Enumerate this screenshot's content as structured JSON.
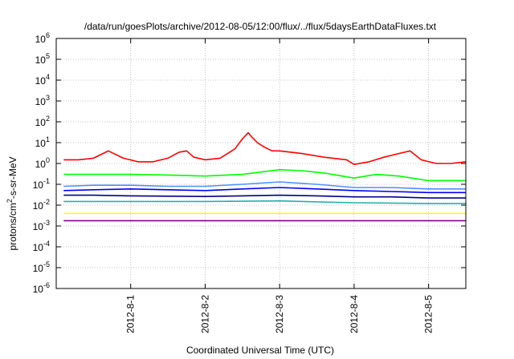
{
  "chart_data": {
    "type": "line",
    "title": "/data/run/goesPlots/archive/2012-08-05/12:00/flux/../flux/5daysEarthDataFluxes.txt",
    "xlabel": "Coordinated Universal Time (UTC)",
    "ylabel_base": "protons/cm",
    "ylabel_sup": "2",
    "ylabel_tail": "-s-sr-MeV",
    "y_scale": "log",
    "ylim": [
      1e-06,
      1000000.0
    ],
    "y_ticks": [
      {
        "exp": -6,
        "base": "10",
        "sup": "-6"
      },
      {
        "exp": -5,
        "base": "10",
        "sup": "-5"
      },
      {
        "exp": -4,
        "base": "10",
        "sup": "-4"
      },
      {
        "exp": -3,
        "base": "10",
        "sup": "-3"
      },
      {
        "exp": -2,
        "base": "10",
        "sup": "-2"
      },
      {
        "exp": -1,
        "base": "10",
        "sup": "-1"
      },
      {
        "exp": 0,
        "base": "10",
        "sup": "0"
      },
      {
        "exp": 1,
        "base": "10",
        "sup": "1"
      },
      {
        "exp": 2,
        "base": "10",
        "sup": "2"
      },
      {
        "exp": 3,
        "base": "10",
        "sup": "3"
      },
      {
        "exp": 4,
        "base": "10",
        "sup": "4"
      },
      {
        "exp": 5,
        "base": "10",
        "sup": "5"
      },
      {
        "exp": 6,
        "base": "10",
        "sup": "6"
      }
    ],
    "x_days": [
      0,
      5.5
    ],
    "x_ticks": [
      {
        "day": 1,
        "label": "2012-8-1"
      },
      {
        "day": 2,
        "label": "2012-8-2"
      },
      {
        "day": 3,
        "label": "2012-8-3"
      },
      {
        "day": 4,
        "label": "2012-8-4"
      },
      {
        "day": 5,
        "label": "2012-8-5"
      }
    ],
    "grid": true,
    "legend": "none",
    "series": [
      {
        "color": "#800080",
        "x": [
          0.1,
          1.0,
          2.0,
          3.0,
          4.0,
          5.0,
          5.5
        ],
        "y": [
          0.0018,
          0.0018,
          0.0018,
          0.0018,
          0.0018,
          0.0018,
          0.0018
        ]
      },
      {
        "color": "#ffff00",
        "x": [
          0.1,
          1.0,
          2.0,
          3.0,
          4.0,
          5.0,
          5.5
        ],
        "y": [
          0.004,
          0.004,
          0.004,
          0.004,
          0.004,
          0.004,
          0.004
        ]
      },
      {
        "color": "#20b2aa",
        "x": [
          0.1,
          1.0,
          2.0,
          3.0,
          4.0,
          5.0,
          5.5
        ],
        "y": [
          0.015,
          0.015,
          0.015,
          0.016,
          0.013,
          0.012,
          0.012
        ]
      },
      {
        "color": "#00008b",
        "x": [
          0.1,
          0.5,
          1.0,
          1.5,
          2.0,
          2.5,
          3.0,
          3.5,
          4.0,
          4.5,
          5.0,
          5.5
        ],
        "y": [
          0.03,
          0.03,
          0.028,
          0.027,
          0.026,
          0.028,
          0.03,
          0.028,
          0.025,
          0.025,
          0.022,
          0.022
        ]
      },
      {
        "color": "#0000ff",
        "x": [
          0.1,
          0.5,
          1.0,
          1.5,
          2.0,
          2.5,
          3.0,
          3.5,
          4.0,
          4.5,
          5.0,
          5.5
        ],
        "y": [
          0.05,
          0.055,
          0.06,
          0.055,
          0.05,
          0.06,
          0.07,
          0.06,
          0.05,
          0.045,
          0.04,
          0.04
        ]
      },
      {
        "color": "#4a90ff",
        "x": [
          0.1,
          0.5,
          1.0,
          1.5,
          2.0,
          2.5,
          3.0,
          3.5,
          4.0,
          4.5,
          5.0,
          5.5
        ],
        "y": [
          0.08,
          0.09,
          0.09,
          0.08,
          0.08,
          0.1,
          0.13,
          0.1,
          0.07,
          0.07,
          0.06,
          0.06
        ]
      },
      {
        "color": "#00ff00",
        "x": [
          0.1,
          0.5,
          1.0,
          1.5,
          2.0,
          2.5,
          3.0,
          3.3,
          3.6,
          4.0,
          4.3,
          4.6,
          5.0,
          5.5
        ],
        "y": [
          0.3,
          0.3,
          0.3,
          0.28,
          0.25,
          0.3,
          0.5,
          0.45,
          0.35,
          0.2,
          0.3,
          0.25,
          0.15,
          0.15
        ]
      },
      {
        "color": "#ff0000",
        "x": [
          0.1,
          0.3,
          0.5,
          0.7,
          0.9,
          1.1,
          1.3,
          1.5,
          1.65,
          1.75,
          1.85,
          2.0,
          2.2,
          2.4,
          2.5,
          2.58,
          2.62,
          2.7,
          2.8,
          2.9,
          3.0,
          3.3,
          3.6,
          3.9,
          4.0,
          4.2,
          4.4,
          4.6,
          4.75,
          4.9,
          5.1,
          5.3,
          5.5
        ],
        "y": [
          1.5,
          1.5,
          1.8,
          4.0,
          1.8,
          1.2,
          1.2,
          1.8,
          3.5,
          4.0,
          2.0,
          1.5,
          1.8,
          5.0,
          15,
          30,
          20,
          10,
          6,
          4,
          4,
          3,
          2,
          1.5,
          0.9,
          1.2,
          2.0,
          3.0,
          4.0,
          1.5,
          1.0,
          1.0,
          1.2
        ]
      }
    ]
  }
}
